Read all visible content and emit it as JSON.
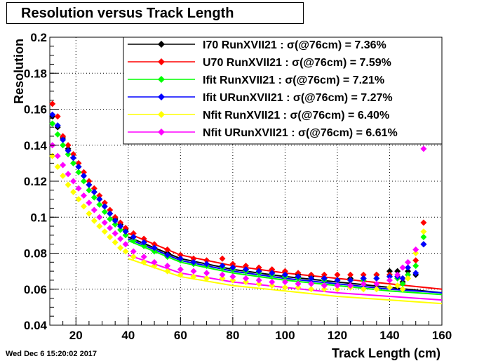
{
  "title": "Resolution versus Track Length",
  "timestamp": "Wed Dec  6 15:20:02 2017",
  "chart_data": {
    "type": "scatter",
    "xlabel": "Track Length (cm)",
    "ylabel": "Resolution",
    "xlim": [
      10,
      160
    ],
    "ylim": [
      0.04,
      0.2
    ],
    "x_ticks": [
      "20",
      "40",
      "60",
      "80",
      "100",
      "120",
      "140",
      "160"
    ],
    "y_ticks": [
      "0.04",
      "0.06",
      "0.08",
      "0.1",
      "0.12",
      "0.14",
      "0.16",
      "0.18",
      "0.2"
    ],
    "grid": true,
    "legend_position": "top-right",
    "series": [
      {
        "name": "I70  RunXVII21 : σ(@76cm) =  7.36%",
        "color": "#000000",
        "x": [
          11,
          13,
          15,
          17,
          19,
          21,
          23,
          25,
          27,
          29,
          31,
          33,
          35,
          37,
          39,
          42,
          46,
          50,
          55,
          60,
          65,
          70,
          76,
          80,
          85,
          90,
          95,
          100,
          105,
          110,
          115,
          120,
          125,
          130,
          135,
          140,
          143,
          145,
          147,
          150,
          153
        ],
        "y": [
          0.156,
          0.15,
          0.144,
          0.138,
          0.133,
          0.128,
          0.123,
          0.118,
          0.114,
          0.11,
          0.106,
          0.102,
          0.099,
          0.096,
          0.093,
          0.089,
          0.086,
          0.083,
          0.08,
          0.077,
          0.075,
          0.074,
          0.073,
          0.072,
          0.071,
          0.07,
          0.069,
          0.068,
          0.068,
          0.067,
          0.066,
          0.065,
          0.066,
          0.066,
          0.068,
          0.07,
          0.07,
          0.064,
          0.07,
          0.068,
          0.085
        ],
        "fit": [
          [
            40,
            0.089
          ],
          [
            60,
            0.077
          ],
          [
            80,
            0.071
          ],
          [
            100,
            0.067
          ],
          [
            120,
            0.064
          ],
          [
            140,
            0.061
          ],
          [
            160,
            0.058
          ]
        ]
      },
      {
        "name": "U70  RunXVII21 : σ(@76cm) =  7.59%",
        "color": "#ff0000",
        "x": [
          11,
          13,
          15,
          17,
          19,
          21,
          23,
          25,
          27,
          29,
          31,
          33,
          35,
          37,
          39,
          42,
          46,
          50,
          55,
          60,
          65,
          70,
          76,
          80,
          85,
          90,
          95,
          100,
          105,
          110,
          115,
          120,
          125,
          130,
          135,
          140,
          143,
          145,
          147,
          150,
          153
        ],
        "y": [
          0.163,
          0.156,
          0.145,
          0.14,
          0.135,
          0.13,
          0.125,
          0.12,
          0.116,
          0.112,
          0.108,
          0.104,
          0.1,
          0.097,
          0.094,
          0.091,
          0.088,
          0.085,
          0.082,
          0.079,
          0.077,
          0.076,
          0.077,
          0.074,
          0.073,
          0.072,
          0.071,
          0.07,
          0.069,
          0.068,
          0.068,
          0.068,
          0.068,
          0.068,
          0.068,
          0.068,
          0.067,
          0.066,
          0.068,
          0.076,
          0.097
        ],
        "fit": [
          [
            40,
            0.091
          ],
          [
            60,
            0.079
          ],
          [
            80,
            0.073
          ],
          [
            100,
            0.069
          ],
          [
            120,
            0.066
          ],
          [
            140,
            0.063
          ],
          [
            160,
            0.06
          ]
        ]
      },
      {
        "name": "Ifit RunXVII21 : σ(@76cm) =  7.21%",
        "color": "#00ff00",
        "x": [
          11,
          13,
          15,
          17,
          19,
          21,
          23,
          25,
          27,
          29,
          31,
          33,
          35,
          37,
          39,
          42,
          46,
          50,
          55,
          60,
          65,
          70,
          76,
          80,
          85,
          90,
          95,
          100,
          105,
          110,
          115,
          120,
          125,
          130,
          135,
          140,
          143,
          145,
          147,
          150,
          153
        ],
        "y": [
          0.152,
          0.146,
          0.14,
          0.135,
          0.13,
          0.125,
          0.12,
          0.115,
          0.111,
          0.107,
          0.103,
          0.099,
          0.096,
          0.093,
          0.09,
          0.087,
          0.084,
          0.081,
          0.078,
          0.076,
          0.074,
          0.073,
          0.072,
          0.071,
          0.07,
          0.069,
          0.068,
          0.067,
          0.066,
          0.066,
          0.065,
          0.065,
          0.065,
          0.065,
          0.066,
          0.067,
          0.066,
          0.063,
          0.068,
          0.073,
          0.089
        ],
        "fit": [
          [
            40,
            0.087
          ],
          [
            60,
            0.075
          ],
          [
            80,
            0.069
          ],
          [
            100,
            0.065
          ],
          [
            120,
            0.062
          ],
          [
            140,
            0.059
          ],
          [
            160,
            0.057
          ]
        ]
      },
      {
        "name": "Ifit URunXVII21 : σ(@76cm) =  7.27%",
        "color": "#0000ff",
        "x": [
          11,
          13,
          15,
          17,
          19,
          21,
          23,
          25,
          27,
          29,
          31,
          33,
          35,
          37,
          39,
          42,
          46,
          50,
          55,
          60,
          65,
          70,
          76,
          80,
          85,
          90,
          95,
          100,
          105,
          110,
          115,
          120,
          125,
          130,
          135,
          140,
          143,
          145,
          147,
          150,
          153
        ],
        "y": [
          0.157,
          0.151,
          0.143,
          0.137,
          0.133,
          0.128,
          0.123,
          0.118,
          0.114,
          0.11,
          0.106,
          0.102,
          0.098,
          0.095,
          0.092,
          0.089,
          0.086,
          0.083,
          0.079,
          0.077,
          0.075,
          0.074,
          0.073,
          0.072,
          0.071,
          0.07,
          0.069,
          0.068,
          0.067,
          0.066,
          0.066,
          0.065,
          0.065,
          0.066,
          0.066,
          0.067,
          0.067,
          0.066,
          0.072,
          0.069,
          0.085
        ],
        "fit": [
          [
            40,
            0.088
          ],
          [
            60,
            0.076
          ],
          [
            80,
            0.07
          ],
          [
            100,
            0.066
          ],
          [
            120,
            0.063
          ],
          [
            140,
            0.06
          ],
          [
            160,
            0.058
          ]
        ]
      },
      {
        "name": "Nfit RunXVII21 : σ(@76cm) =  6.40%",
        "color": "#ffff00",
        "x": [
          11,
          13,
          15,
          17,
          19,
          21,
          23,
          25,
          27,
          29,
          31,
          33,
          35,
          37,
          39,
          42,
          46,
          50,
          55,
          60,
          65,
          70,
          76,
          80,
          85,
          90,
          95,
          100,
          105,
          110,
          115,
          120,
          125,
          130,
          135,
          140,
          143,
          145,
          147,
          150,
          153
        ],
        "y": [
          0.134,
          0.128,
          0.123,
          0.118,
          0.114,
          0.11,
          0.106,
          0.102,
          0.098,
          0.095,
          0.092,
          0.089,
          0.086,
          0.083,
          0.081,
          0.078,
          0.075,
          0.073,
          0.07,
          0.068,
          0.067,
          0.066,
          0.066,
          0.065,
          0.064,
          0.063,
          0.062,
          0.061,
          0.061,
          0.06,
          0.06,
          0.06,
          0.061,
          0.06,
          0.06,
          0.061,
          0.062,
          0.06,
          0.066,
          0.08,
          0.092
        ],
        "fit": [
          [
            40,
            0.077
          ],
          [
            60,
            0.067
          ],
          [
            80,
            0.062
          ],
          [
            100,
            0.059
          ],
          [
            120,
            0.056
          ],
          [
            140,
            0.054
          ],
          [
            160,
            0.052
          ]
        ]
      },
      {
        "name": "Nfit URunXVII21 : σ(@76cm) =  6.61%",
        "color": "#ff00ff",
        "x": [
          11,
          13,
          15,
          17,
          19,
          21,
          23,
          25,
          27,
          29,
          31,
          33,
          35,
          37,
          39,
          42,
          46,
          50,
          55,
          60,
          65,
          70,
          76,
          80,
          85,
          90,
          95,
          100,
          105,
          110,
          115,
          120,
          125,
          130,
          135,
          140,
          143,
          145,
          147,
          150,
          153
        ],
        "y": [
          0.14,
          0.134,
          0.129,
          0.124,
          0.12,
          0.116,
          0.112,
          0.108,
          0.104,
          0.1,
          0.097,
          0.094,
          0.091,
          0.088,
          0.085,
          0.081,
          0.078,
          0.075,
          0.073,
          0.071,
          0.07,
          0.069,
          0.068,
          0.067,
          0.066,
          0.065,
          0.064,
          0.064,
          0.063,
          0.063,
          0.062,
          0.062,
          0.062,
          0.063,
          0.063,
          0.065,
          0.068,
          0.072,
          0.075,
          0.082,
          0.138
        ],
        "fit": [
          [
            40,
            0.079
          ],
          [
            60,
            0.069
          ],
          [
            80,
            0.064
          ],
          [
            100,
            0.061
          ],
          [
            120,
            0.058
          ],
          [
            140,
            0.056
          ],
          [
            160,
            0.054
          ]
        ]
      }
    ]
  }
}
